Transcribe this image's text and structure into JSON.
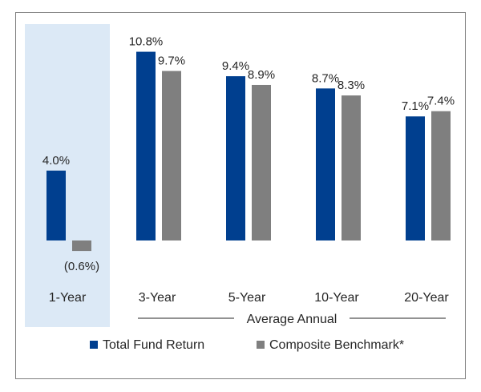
{
  "chart_data": {
    "type": "bar",
    "categories": [
      "1-Year",
      "3-Year",
      "5-Year",
      "10-Year",
      "20-Year"
    ],
    "series": [
      {
        "name": "Total Fund Return",
        "color": "#003f8f",
        "values": [
          4.0,
          10.8,
          9.4,
          8.7,
          7.1
        ],
        "labels": [
          "4.0%",
          "10.8%",
          "9.4%",
          "8.7%",
          "7.1%"
        ]
      },
      {
        "name": "Composite Benchmark*",
        "color": "#7f7f7f",
        "values": [
          -0.6,
          9.7,
          8.9,
          8.3,
          7.4
        ],
        "labels": [
          "(0.6%)",
          "9.7%",
          "8.9%",
          "8.3%",
          "7.4%"
        ]
      }
    ],
    "group_label": "Average Annual",
    "highlight_category": "1-Year",
    "highlight_color": "#dce9f6",
    "ylim": [
      -0.6,
      10.8
    ],
    "legend": "bottom",
    "grid": false
  }
}
